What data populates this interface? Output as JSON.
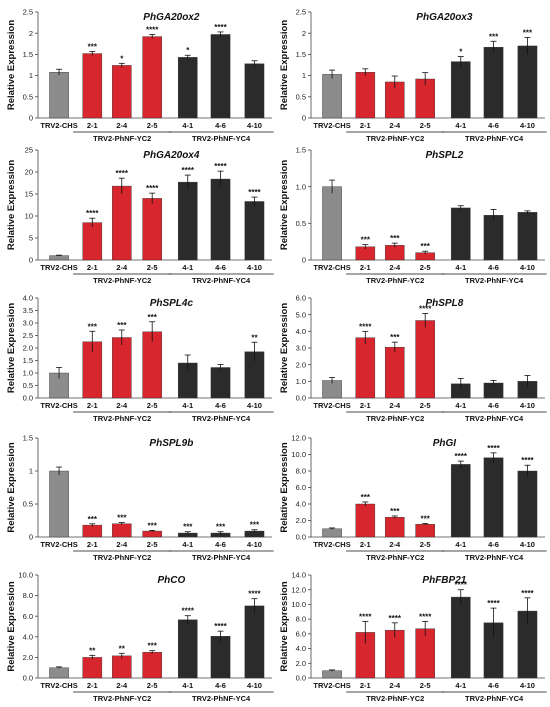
{
  "figure": {
    "colors": {
      "control": "#8c8c8c",
      "yc2": "#d7262e",
      "yc4": "#2b2b2b",
      "highlight": "#f7b3e8"
    }
  },
  "chart_data": [
    {
      "type": "bar",
      "title": "PhGA20ox2",
      "ylabel": "Relative Expression",
      "ylim": [
        0,
        2.5
      ],
      "ticks": [
        0,
        0.5,
        1.0,
        1.5,
        2.0,
        2.5
      ],
      "tick_labels": [
        "0",
        "0.5",
        "1",
        "1.5",
        "2",
        "2.5"
      ],
      "categories": [
        "TRV2-CHS",
        "2-1",
        "2-4",
        "2-5",
        "4-1",
        "4-6",
        "4-10"
      ],
      "values": [
        1.08,
        1.52,
        1.24,
        1.92,
        1.43,
        1.97,
        1.28
      ],
      "errors": [
        0.07,
        0.05,
        0.05,
        0.05,
        0.05,
        0.06,
        0.07
      ],
      "significance": [
        "",
        "***",
        "*",
        "****",
        "*",
        "****",
        ""
      ],
      "groups": [
        "TRV2-PhNF-YC2",
        "TRV2-PhNF-YC4"
      ]
    },
    {
      "type": "bar",
      "title": "PhGA20ox3",
      "ylabel": "Relative Expression",
      "ylim": [
        0,
        2.5
      ],
      "ticks": [
        0,
        0.5,
        1.0,
        1.5,
        2.0,
        2.5
      ],
      "tick_labels": [
        "0",
        "0.5",
        "1",
        "1.5",
        "2",
        "2.5"
      ],
      "categories": [
        "TRV2-CHS",
        "2-1",
        "2-4",
        "2-5",
        "4-1",
        "4-6",
        "4-10"
      ],
      "values": [
        1.03,
        1.08,
        0.85,
        0.92,
        1.33,
        1.67,
        1.7
      ],
      "errors": [
        0.1,
        0.08,
        0.14,
        0.15,
        0.12,
        0.14,
        0.2
      ],
      "significance": [
        "",
        "",
        "",
        "",
        "*",
        "***",
        "***"
      ],
      "groups": [
        "TRV2-PhNF-YC2",
        "TRV2-PhNF-YC4"
      ]
    },
    {
      "type": "bar",
      "title": "PhGA20ox4",
      "ylabel": "Relative Expression",
      "ylim": [
        0,
        25
      ],
      "ticks": [
        0,
        5,
        10,
        15,
        20,
        25
      ],
      "tick_labels": [
        "0",
        "5",
        "10",
        "15",
        "20",
        "25"
      ],
      "categories": [
        "TRV2-CHS",
        "2-1",
        "2-4",
        "2-5",
        "4-1",
        "4-6",
        "4-10"
      ],
      "values": [
        1.0,
        8.5,
        16.8,
        14.0,
        17.7,
        18.4,
        13.3
      ],
      "errors": [
        0.1,
        1.0,
        1.8,
        1.2,
        1.6,
        1.8,
        1.0
      ],
      "significance": [
        "",
        "****",
        "****",
        "****",
        "****",
        "****",
        "****"
      ],
      "groups": [
        "TRV2-PhNF-YC2",
        "TRV2-PhNF-YC4"
      ]
    },
    {
      "type": "bar",
      "title": "PhSPL2",
      "ylabel": "Relative Expression",
      "ylim": [
        0,
        1.5
      ],
      "ticks": [
        0,
        0.5,
        1.0,
        1.5
      ],
      "tick_labels": [
        "0",
        "0.5",
        "1.0",
        "1.5"
      ],
      "categories": [
        "TRV2-CHS",
        "2-1",
        "2-4",
        "2-5",
        "4-1",
        "4-6",
        "4-10"
      ],
      "values": [
        1.0,
        0.18,
        0.2,
        0.1,
        0.71,
        0.61,
        0.65
      ],
      "errors": [
        0.09,
        0.03,
        0.03,
        0.02,
        0.03,
        0.08,
        0.02
      ],
      "significance": [
        "",
        "***",
        "***",
        "***",
        "",
        "",
        ""
      ],
      "groups": [
        "TRV2-PhNF-YC2",
        "TRV2-PhNF-YC4"
      ]
    },
    {
      "type": "bar",
      "title": "PhSPL4c",
      "ylabel": "Relative Expression",
      "ylim": [
        0,
        4.0
      ],
      "ticks": [
        0,
        0.5,
        1.0,
        1.5,
        2.0,
        2.5,
        3.0,
        3.5,
        4.0
      ],
      "tick_labels": [
        "0.0",
        "0.5",
        "1.0",
        "1.5",
        "2.0",
        "2.5",
        "3.0",
        "3.5",
        "4.0"
      ],
      "categories": [
        "TRV2-CHS",
        "2-1",
        "2-4",
        "2-5",
        "4-1",
        "4-6",
        "4-10"
      ],
      "values": [
        1.0,
        2.25,
        2.42,
        2.65,
        1.4,
        1.22,
        1.85
      ],
      "errors": [
        0.22,
        0.42,
        0.3,
        0.4,
        0.32,
        0.12,
        0.38
      ],
      "significance": [
        "",
        "***",
        "***",
        "***",
        "",
        "",
        "**"
      ],
      "groups": [
        "TRV2-PhNF-YC2",
        "TRV2-PhNF-YC4"
      ]
    },
    {
      "type": "bar",
      "title": "PhSPL8",
      "ylabel": "Relative Expression",
      "ylim": [
        0,
        6.0
      ],
      "ticks": [
        0,
        1,
        2,
        3,
        4,
        5,
        6
      ],
      "tick_labels": [
        "0.0",
        "1.0",
        "2.0",
        "3.0",
        "4.0",
        "5.0",
        "6.0"
      ],
      "categories": [
        "TRV2-CHS",
        "2-1",
        "2-4",
        "2-5",
        "4-1",
        "4-6",
        "4-10"
      ],
      "values": [
        1.05,
        3.62,
        3.05,
        4.65,
        0.85,
        0.9,
        1.0
      ],
      "errors": [
        0.18,
        0.38,
        0.3,
        0.42,
        0.32,
        0.15,
        0.35
      ],
      "significance": [
        "",
        "****",
        "***",
        "****",
        "",
        "",
        ""
      ],
      "groups": [
        "TRV2-PhNF-YC2",
        "TRV2-PhNF-YC4"
      ]
    },
    {
      "type": "bar",
      "title": "PhSPL9b",
      "ylabel": "Relative Expression",
      "ylim": [
        0,
        1.5
      ],
      "ticks": [
        0,
        0.5,
        1.0,
        1.5
      ],
      "tick_labels": [
        "0",
        "0.5",
        "1",
        "1.5"
      ],
      "categories": [
        "TRV2-CHS",
        "2-1",
        "2-4",
        "2-5",
        "4-1",
        "4-6",
        "4-10"
      ],
      "values": [
        1.0,
        0.18,
        0.2,
        0.09,
        0.06,
        0.06,
        0.09
      ],
      "errors": [
        0.06,
        0.02,
        0.02,
        0.01,
        0.02,
        0.02,
        0.02
      ],
      "significance": [
        "",
        "***",
        "***",
        "***",
        "***",
        "***",
        "***"
      ],
      "groups": [
        "TRV2-PhNF-YC2",
        "TRV2-PhNF-YC4"
      ]
    },
    {
      "type": "bar",
      "title": "PhGI",
      "ylabel": "Relative Expression",
      "ylim": [
        0,
        12.0
      ],
      "ticks": [
        0,
        2,
        4,
        6,
        8,
        10,
        12
      ],
      "tick_labels": [
        "0.0",
        "2.0",
        "4.0",
        "6.0",
        "8.0",
        "10.0",
        "12.0"
      ],
      "categories": [
        "TRV2-CHS",
        "2-1",
        "2-4",
        "2-5",
        "4-1",
        "4-6",
        "4-10"
      ],
      "values": [
        1.0,
        4.0,
        2.4,
        1.55,
        8.8,
        9.6,
        8.0
      ],
      "errors": [
        0.1,
        0.25,
        0.15,
        0.1,
        0.4,
        0.6,
        0.7
      ],
      "significance": [
        "",
        "***",
        "***",
        "***",
        "****",
        "****",
        "****"
      ],
      "groups": [
        "TRV2-PhNF-YC2",
        "TRV2-PhNF-YC4"
      ]
    },
    {
      "type": "bar",
      "title": "PhCO",
      "ylabel": "Relative Expression",
      "ylim": [
        0,
        10.0
      ],
      "ticks": [
        0,
        2,
        4,
        6,
        8,
        10
      ],
      "tick_labels": [
        "0.0",
        "2.0",
        "4.0",
        "6.0",
        "8.0",
        "10.0"
      ],
      "categories": [
        "TRV2-CHS",
        "2-1",
        "2-4",
        "2-5",
        "4-1",
        "4-6",
        "4-10"
      ],
      "values": [
        1.0,
        2.0,
        2.15,
        2.5,
        5.65,
        4.05,
        7.0
      ],
      "errors": [
        0.08,
        0.2,
        0.25,
        0.15,
        0.4,
        0.5,
        0.7
      ],
      "significance": [
        "",
        "**",
        "**",
        "***",
        "****",
        "****",
        "****"
      ],
      "groups": [
        "TRV2-PhNF-YC2",
        "TRV2-PhNF-YC4"
      ]
    },
    {
      "type": "bar",
      "title": "PhFBP21",
      "ylabel": "Relative Expression",
      "ylim": [
        0,
        14.0
      ],
      "ticks": [
        0,
        2,
        4,
        6,
        8,
        10,
        12,
        14
      ],
      "tick_labels": [
        "0.0",
        "2.0",
        "4.0",
        "6.0",
        "8.0",
        "10.0",
        "12.0",
        "14.0"
      ],
      "categories": [
        "TRV2-CHS",
        "2-1",
        "2-4",
        "2-5",
        "4-1",
        "4-6",
        "4-10"
      ],
      "values": [
        1.0,
        6.2,
        6.5,
        6.7,
        11.0,
        7.5,
        9.1
      ],
      "errors": [
        0.1,
        1.5,
        1.0,
        1.0,
        1.0,
        2.0,
        1.8
      ],
      "significance": [
        "",
        "****",
        "****",
        "****",
        "****",
        "****",
        "****"
      ],
      "groups": [
        "TRV2-PhNF-YC2",
        "TRV2-PhNF-YC4"
      ]
    }
  ]
}
